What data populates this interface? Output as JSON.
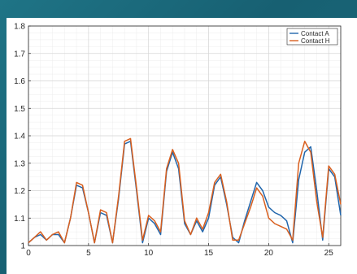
{
  "chart_data": {
    "type": "line",
    "title": "",
    "xlabel": "",
    "ylabel": "",
    "xlim": [
      0,
      26
    ],
    "ylim": [
      1.0,
      1.8
    ],
    "xticks": [
      0,
      5,
      10,
      15,
      20,
      25
    ],
    "yticks": [
      1,
      1.1,
      1.2,
      1.3,
      1.4,
      1.5,
      1.6,
      1.7,
      1.8
    ],
    "grid": true,
    "legend_position": "top-right",
    "series": [
      {
        "name": "Contact A",
        "color": "#2166ac",
        "x": [
          0,
          0.5,
          1,
          1.5,
          2,
          2.5,
          3,
          3.5,
          4,
          4.5,
          5,
          5.5,
          6,
          6.5,
          7,
          7.5,
          8,
          8.5,
          9,
          9.5,
          10,
          10.5,
          11,
          11.5,
          12,
          12.5,
          13,
          13.5,
          14,
          14.5,
          15,
          15.5,
          16,
          16.5,
          17,
          17.5,
          18,
          18.5,
          19,
          19.5,
          20,
          20.5,
          21,
          21.5,
          22,
          22.5,
          23,
          23.5,
          24,
          24.5,
          25,
          25.5,
          26
        ],
        "values": [
          1.01,
          1.03,
          1.04,
          1.02,
          1.04,
          1.04,
          1.01,
          1.1,
          1.22,
          1.21,
          1.12,
          1.01,
          1.12,
          1.11,
          1.01,
          1.17,
          1.37,
          1.38,
          1.2,
          1.01,
          1.1,
          1.08,
          1.04,
          1.27,
          1.34,
          1.28,
          1.08,
          1.04,
          1.09,
          1.05,
          1.1,
          1.22,
          1.25,
          1.15,
          1.03,
          1.01,
          1.09,
          1.16,
          1.23,
          1.2,
          1.14,
          1.12,
          1.11,
          1.09,
          1.01,
          1.24,
          1.34,
          1.36,
          1.2,
          1.02,
          1.28,
          1.25,
          1.11
        ]
      },
      {
        "name": "Contact H",
        "color": "#d95f1e",
        "x": [
          0,
          0.5,
          1,
          1.5,
          2,
          2.5,
          3,
          3.5,
          4,
          4.5,
          5,
          5.5,
          6,
          6.5,
          7,
          7.5,
          8,
          8.5,
          9,
          9.5,
          10,
          10.5,
          11,
          11.5,
          12,
          12.5,
          13,
          13.5,
          14,
          14.5,
          15,
          15.5,
          16,
          16.5,
          17,
          17.5,
          18,
          18.5,
          19,
          19.5,
          20,
          20.5,
          21,
          21.5,
          22,
          22.5,
          23,
          23.5,
          24,
          24.5,
          25,
          25.5,
          26
        ],
        "values": [
          1.01,
          1.03,
          1.05,
          1.02,
          1.04,
          1.05,
          1.01,
          1.1,
          1.23,
          1.22,
          1.12,
          1.01,
          1.13,
          1.12,
          1.01,
          1.18,
          1.38,
          1.39,
          1.21,
          1.02,
          1.11,
          1.09,
          1.05,
          1.28,
          1.35,
          1.3,
          1.09,
          1.04,
          1.1,
          1.06,
          1.12,
          1.23,
          1.26,
          1.16,
          1.02,
          1.02,
          1.08,
          1.14,
          1.21,
          1.18,
          1.1,
          1.08,
          1.07,
          1.06,
          1.02,
          1.3,
          1.38,
          1.34,
          1.16,
          1.03,
          1.29,
          1.26,
          1.15
        ]
      }
    ]
  }
}
